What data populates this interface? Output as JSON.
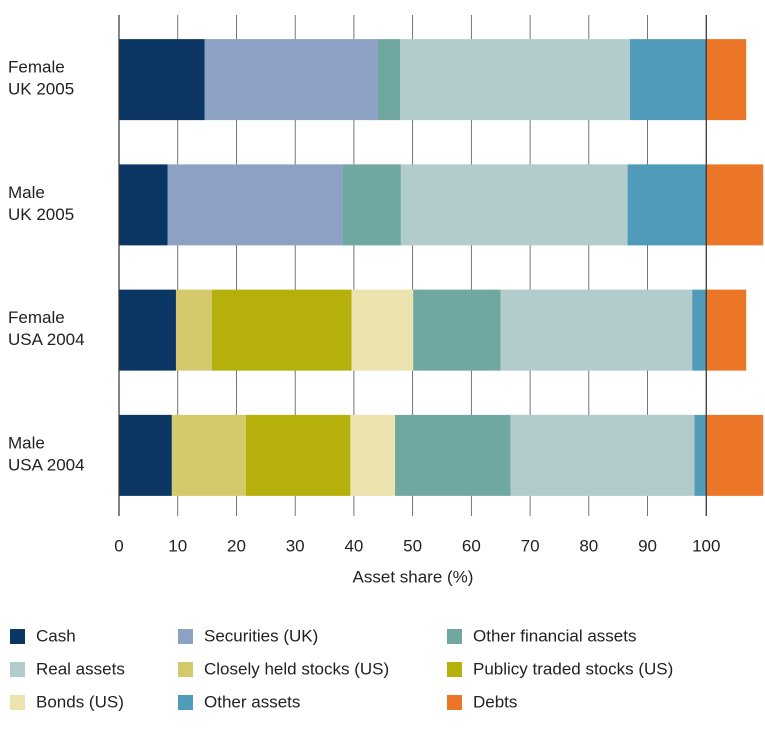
{
  "chart_data": {
    "type": "stacked-barh",
    "categories": [
      "Female UK 2005",
      "Male UK 2005",
      "Female USA 2004",
      "Male USA 2004"
    ],
    "xlabel": "Asset share (%)",
    "xlim": [
      0,
      110
    ],
    "xticks": [
      0,
      10,
      20,
      30,
      40,
      50,
      60,
      70,
      80,
      90,
      100
    ],
    "grid": true,
    "series": [
      {
        "name": "Cash",
        "color": "#0b3563",
        "values": [
          14.6,
          8.3,
          9.7,
          9.0
        ]
      },
      {
        "name": "Securities (UK)",
        "color": "#8ca1c4",
        "values": [
          29.4,
          29.7,
          null,
          null
        ]
      },
      {
        "name": "Closely held stocks (US)",
        "color": "#d4c96b",
        "values": [
          null,
          null,
          6.1,
          12.6
        ]
      },
      {
        "name": "Publicy traded stocks (US)",
        "color": "#b5b00b",
        "values": [
          null,
          null,
          23.8,
          17.8
        ]
      },
      {
        "name": "Bonds (US)",
        "color": "#ebe4ae",
        "values": [
          null,
          null,
          10.5,
          7.6
        ]
      },
      {
        "name": "Other financial assets",
        "color": "#70a8a1",
        "values": [
          3.9,
          10.0,
          14.9,
          19.7
        ]
      },
      {
        "name": "Real assets",
        "color": "#b1ccca",
        "values": [
          39.1,
          38.6,
          32.6,
          31.3
        ]
      },
      {
        "name": "Other assets",
        "color": "#4f9bb9",
        "values": [
          13.0,
          13.4,
          2.4,
          2.0
        ]
      },
      {
        "name": "Debts",
        "color": "#ec7628",
        "values": [
          6.8,
          9.7,
          6.8,
          9.7
        ]
      }
    ]
  }
}
